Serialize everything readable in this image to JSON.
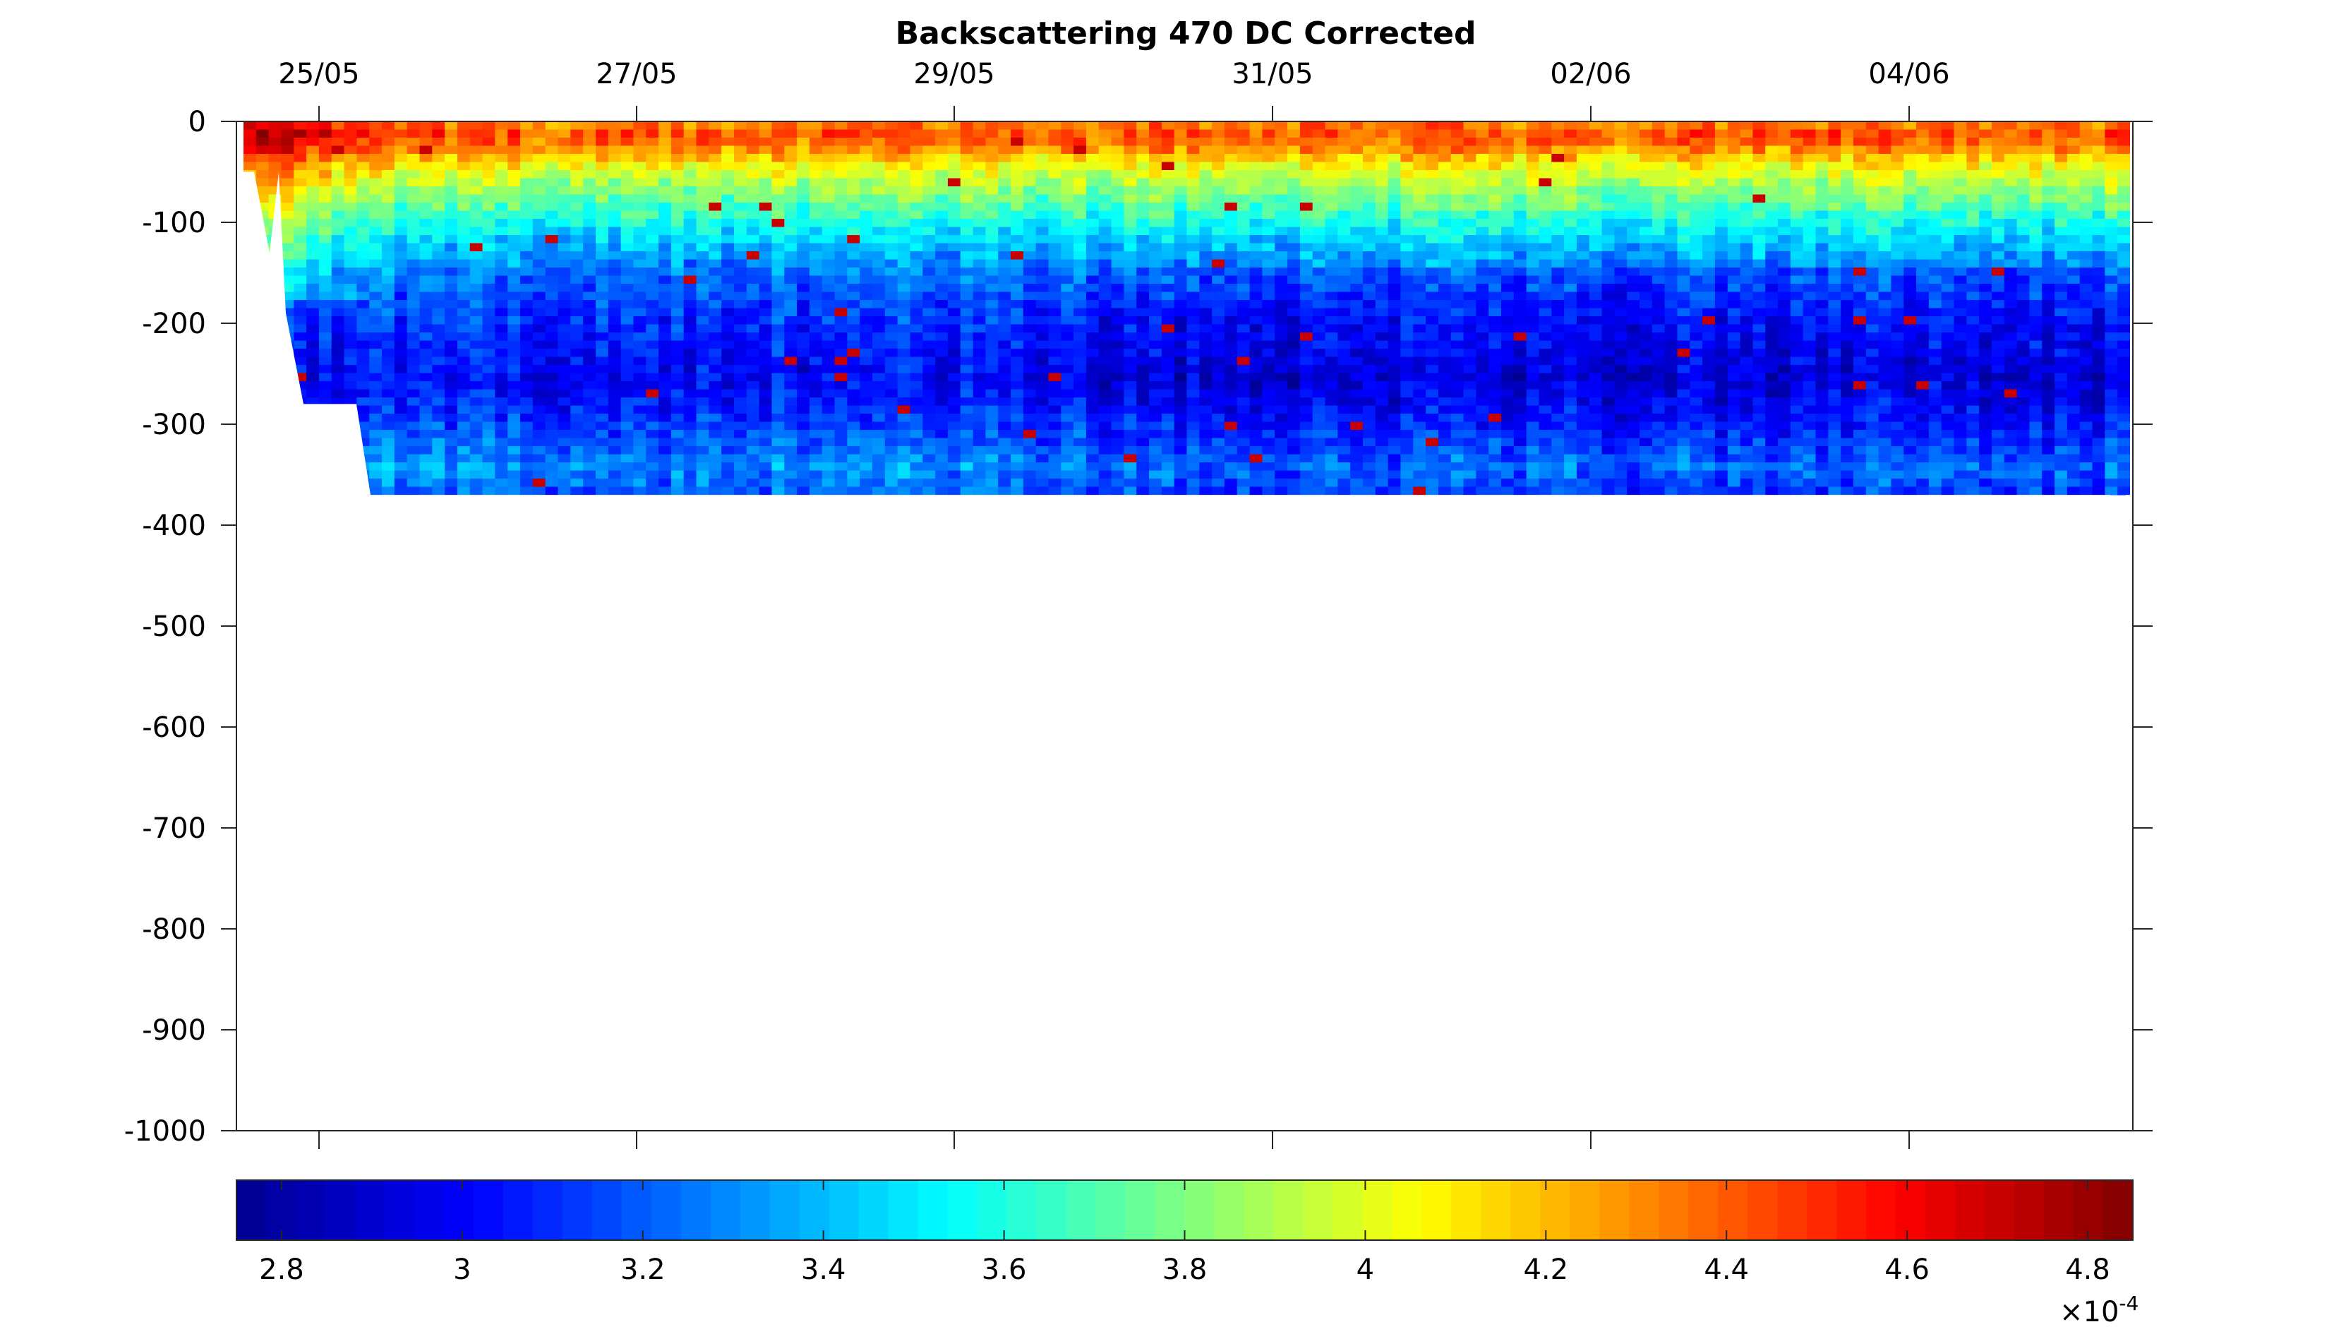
{
  "chart_data": {
    "type": "heatmap",
    "title": "Backscattering 470 DC Corrected",
    "xlabel": "",
    "ylabel": "",
    "x_axis": {
      "position": "top",
      "type": "date",
      "range": [
        "24/05",
        "05/06"
      ],
      "ticks": [
        "25/05",
        "27/05",
        "29/05",
        "31/05",
        "02/06",
        "04/06"
      ]
    },
    "y_axis": {
      "range": [
        -1000,
        0
      ],
      "ticks": [
        0,
        -100,
        -200,
        -300,
        -400,
        -500,
        -600,
        -700,
        -800,
        -900,
        -1000
      ],
      "tick_labels": [
        "0",
        "-100",
        "-200",
        "-300",
        "-400",
        "-500",
        "-600",
        "-700",
        "-800",
        "-900",
        "-1000"
      ]
    },
    "grid": false,
    "colormap": "jet",
    "colorbar": {
      "placement": "bottom",
      "range": [
        2.75,
        4.85
      ],
      "ticks": [
        "2.8",
        "3",
        "3.2",
        "3.4",
        "3.6",
        "3.8",
        "4",
        "4.2",
        "4.4",
        "4.6",
        "4.8"
      ],
      "exponent_label": "×10",
      "exponent_power": "-4",
      "levels": 64,
      "colors": [
        "#00008f",
        "#0000ff",
        "#0080ff",
        "#00ffff",
        "#80ff80",
        "#ffff00",
        "#ff8000",
        "#ff0000",
        "#800000"
      ]
    },
    "depth_profile": [
      {
        "depth": 0,
        "value": 4.2
      },
      {
        "depth": -10,
        "value": 4.45
      },
      {
        "depth": -25,
        "value": 4.35
      },
      {
        "depth": -50,
        "value": 4.0
      },
      {
        "depth": -80,
        "value": 3.75
      },
      {
        "depth": -110,
        "value": 3.5
      },
      {
        "depth": -150,
        "value": 3.25
      },
      {
        "depth": -200,
        "value": 3.1
      },
      {
        "depth": -260,
        "value": 3.0
      },
      {
        "depth": -310,
        "value": 3.15
      },
      {
        "depth": -345,
        "value": 3.3
      },
      {
        "depth": -370,
        "value": 3.2
      }
    ],
    "data_max_depth": -370
  }
}
